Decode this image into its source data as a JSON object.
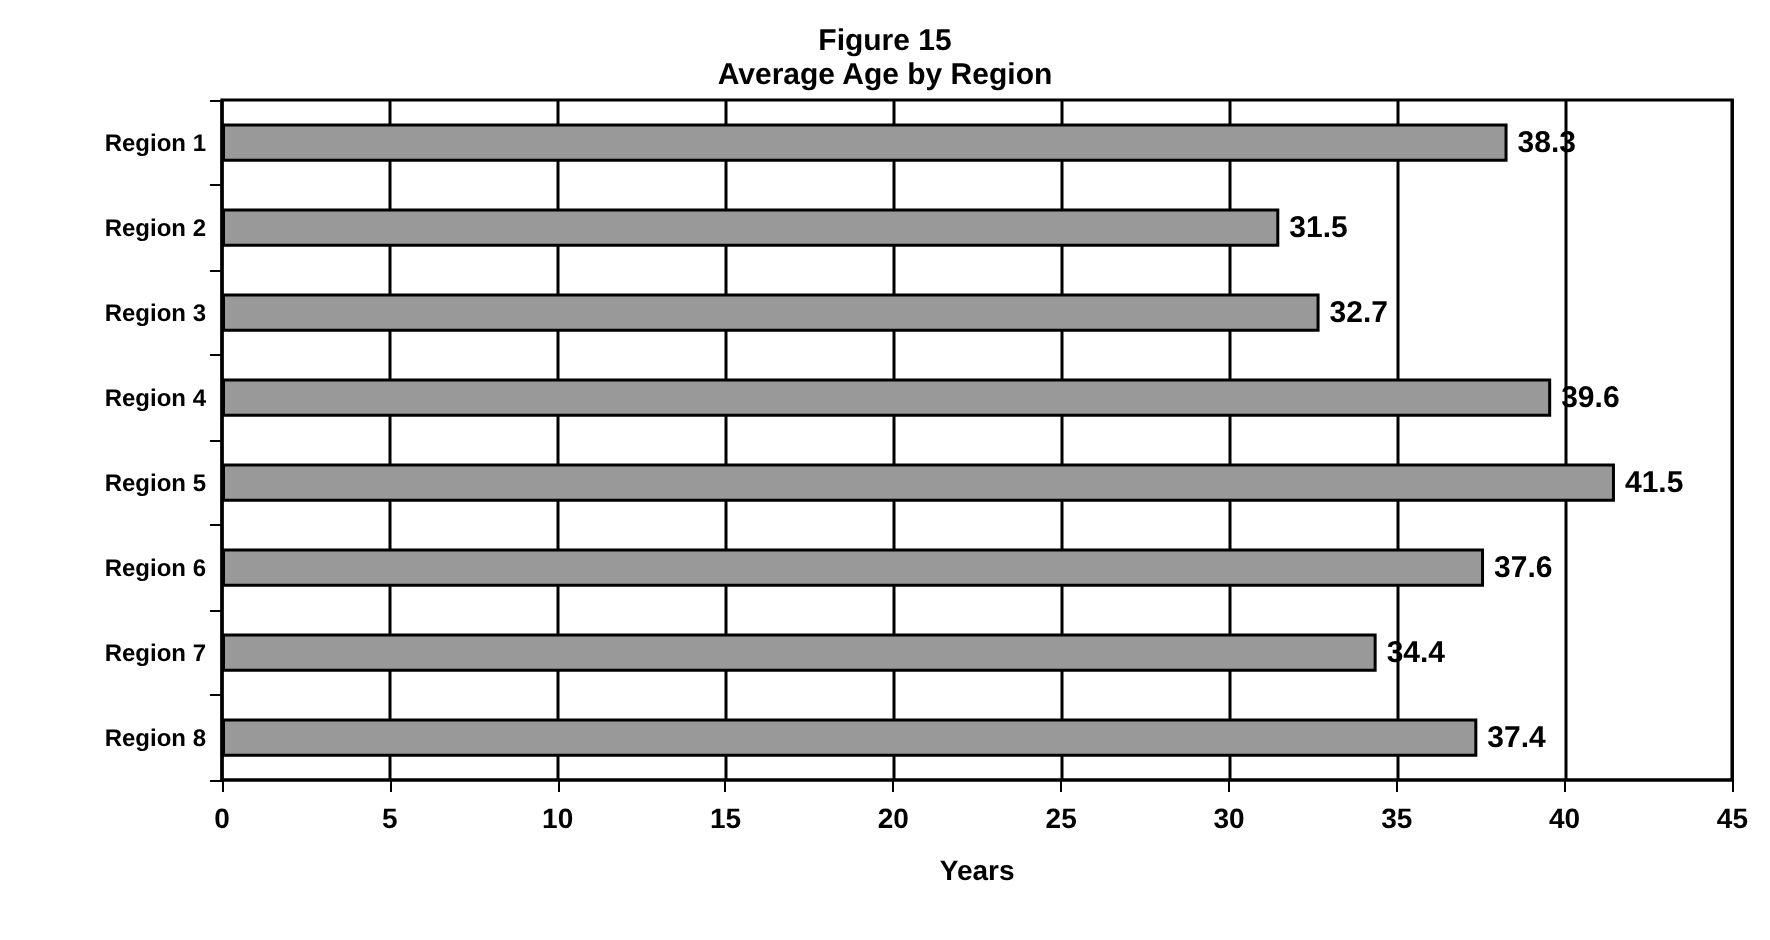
{
  "chart_data": {
    "type": "bar",
    "orientation": "horizontal",
    "title": "Figure 15",
    "subtitle": "Average Age by Region",
    "xlabel": "Years",
    "categories": [
      "Region 1",
      "Region 2",
      "Region 3",
      "Region 4",
      "Region 5",
      "Region 6",
      "Region 7",
      "Region 8"
    ],
    "values": [
      38.3,
      31.5,
      32.7,
      39.6,
      41.5,
      37.6,
      34.4,
      37.4
    ],
    "color": "#999999",
    "xlim": [
      0,
      45
    ],
    "xticks": [
      0,
      5,
      10,
      15,
      20,
      25,
      30,
      35,
      40,
      45
    ],
    "grid": "x",
    "data_labels": true
  }
}
